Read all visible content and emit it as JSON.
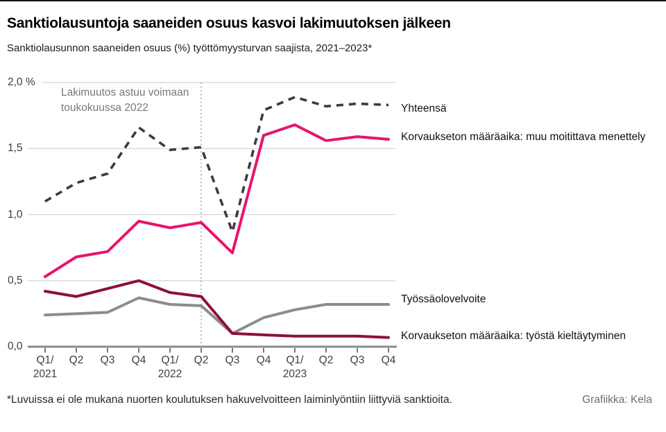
{
  "header": {
    "title": "Sanktiolausuntoja saaneiden osuus kasvoi lakimuutoksen jälkeen",
    "subtitle": "Sanktiolausunnon saaneiden osuus (%) työttömyysturvan saajista, 2021–2023*"
  },
  "footer": {
    "note": "*Luvuissa ei ole mukana nuorten koulutuksen hakuvelvoitteen laiminlyöntiin liittyviä sanktioita.",
    "credit": "Grafiikka: Kela"
  },
  "chart_data": {
    "type": "line",
    "title": "Sanktiolausuntoja saaneiden osuus kasvoi lakimuutoksen jälkeen",
    "subtitle": "Sanktiolausunnon saaneiden osuus (%) työttömyysturvan saajista, 2021–2023*",
    "categories": [
      "Q1/2021",
      "Q2",
      "Q3",
      "Q4",
      "Q1/2022",
      "Q2",
      "Q3",
      "Q4",
      "Q1/2023",
      "Q2",
      "Q3",
      "Q4"
    ],
    "y_ticks": [
      {
        "label": "2,0 %",
        "value": 2.0
      },
      {
        "label": "1,5",
        "value": 1.5
      },
      {
        "label": "1,0",
        "value": 1.0
      },
      {
        "label": "0,5",
        "value": 0.5
      },
      {
        "label": "0,0",
        "value": 0.0
      }
    ],
    "ylim": [
      0,
      2.0
    ],
    "ylabel": "%",
    "grid": "horizontal",
    "legend_position": "right-of-line-ends",
    "annotation": {
      "line1": "Lakimuutos astuu voimaan",
      "line2": "toukokuussa 2022",
      "x_index": 5
    },
    "series": [
      {
        "id": "yhteensa",
        "name": "Yhteensä",
        "color": "#3b3b3b",
        "style": "dashed",
        "values": [
          1.1,
          1.24,
          1.31,
          1.66,
          1.49,
          1.51,
          0.87,
          1.79,
          1.89,
          1.82,
          1.84,
          1.83
        ]
      },
      {
        "id": "muu-moitittava-menettely",
        "name": "Korvaukseton määräaika: muu moitittava menettely",
        "color": "#e8146d",
        "style": "solid",
        "values": [
          0.53,
          0.68,
          0.72,
          0.95,
          0.9,
          0.94,
          0.71,
          1.6,
          1.68,
          1.56,
          1.59,
          1.57
        ]
      },
      {
        "id": "tyossaolovelvoite",
        "name": "Työssäolovelvoite",
        "color": "#8c8c8c",
        "style": "solid",
        "values": [
          0.24,
          0.25,
          0.26,
          0.37,
          0.32,
          0.31,
          0.1,
          0.22,
          0.28,
          0.32,
          0.32,
          0.32
        ]
      },
      {
        "id": "tyosta-kieltaytyminen",
        "name": "Korvaukseton määräaika: työstä kieltäytyminen",
        "color": "#8e0f3a",
        "style": "solid",
        "values": [
          0.42,
          0.38,
          0.44,
          0.5,
          0.41,
          0.38,
          0.1,
          0.09,
          0.08,
          0.08,
          0.08,
          0.07
        ]
      }
    ],
    "colors": {
      "gridline": "#d4d4d4",
      "axis_line": "#8a8a8a",
      "tick": "#555555",
      "vline": "#9e9e9e"
    }
  }
}
